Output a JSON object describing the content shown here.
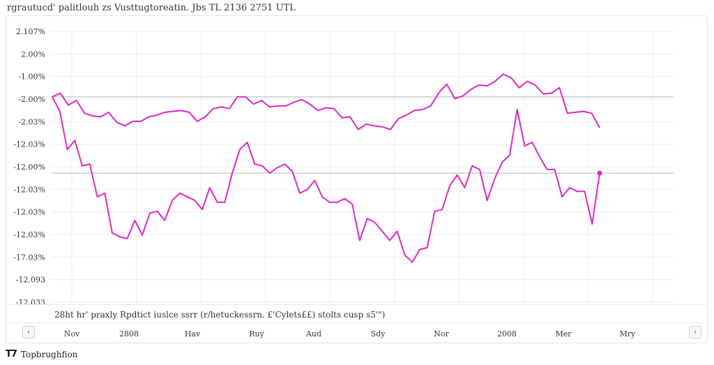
{
  "header": {
    "title": "rgrautucd' palitlouh zs Vusttugtoreatin. Jbs TL 2136 2751 UTL"
  },
  "caption": {
    "text": "28ht hr' praxly Rpdtict iuslce ssrr (r/hetuckessrn. £'Cylets££) stolts cusp s5'\")"
  },
  "nav": {
    "prev_icon": "‹",
    "next_icon": "›"
  },
  "footer": {
    "logo": "T7",
    "text": "Topbrughfion"
  },
  "colors": {
    "line": "#e225c8",
    "grid": "#ececec",
    "refline": "#c9cfcd"
  },
  "chart_data": {
    "type": "line",
    "title": "rgrautucd' palitlouh zs Vusttugtoreatin. Jbs TL 2136 2751 UTL",
    "ytick_labels": [
      "2.107%",
      "2.00%",
      "-1.00%",
      "-2.00%",
      "-2.03%",
      "-12.03%",
      "-12.00%",
      "-12.03%",
      "-12.03%",
      "-12.03%",
      "-17.03%",
      "-12.093",
      "-12.033"
    ],
    "xtick_labels": [
      "Nov",
      "2808",
      "Hav",
      "Ruy",
      "Aud",
      "Sdy",
      "Nor",
      "2008",
      "Mer",
      "Mry"
    ],
    "ylim": [
      -12.3,
      2.6
    ],
    "grid": true,
    "reference_lines": [
      -1.0,
      -5.2
    ],
    "series": [
      {
        "values": [
          -1.0,
          -0.8,
          -1.45,
          -1.2,
          -1.9,
          -2.05,
          -2.1,
          -1.85,
          -2.4,
          -2.6,
          -2.35,
          -2.35,
          -2.1,
          -2.0,
          -1.85,
          -1.8,
          -1.75,
          -1.85,
          -2.35,
          -2.1,
          -1.65,
          -1.55,
          -1.65,
          -1.0,
          -1.0,
          -1.4,
          -1.2,
          -1.55,
          -1.5,
          -1.5,
          -1.3,
          -1.15,
          -1.4,
          -1.75,
          -1.6,
          -1.65,
          -2.15,
          -2.1,
          -2.8,
          -2.5,
          -2.6,
          -2.65,
          -2.8,
          -2.2,
          -2.0,
          -1.75,
          -1.7,
          -1.5,
          -0.8,
          -0.3,
          -1.1,
          -0.95,
          -0.6,
          -0.35,
          -0.4,
          -0.15,
          0.25,
          0.05,
          -0.5,
          -0.15,
          -0.35,
          -0.85,
          -0.8,
          -0.5,
          -1.9,
          -1.85,
          -1.8,
          -1.9,
          -2.7
        ]
      },
      {
        "values": [
          -1.0,
          -1.8,
          -3.9,
          -3.4,
          -4.8,
          -4.7,
          -6.5,
          -6.3,
          -8.5,
          -8.7,
          -8.8,
          -7.8,
          -8.6,
          -7.4,
          -7.3,
          -7.8,
          -6.7,
          -6.3,
          -6.5,
          -6.7,
          -7.2,
          -6.0,
          -6.8,
          -6.8,
          -5.2,
          -3.9,
          -3.5,
          -4.7,
          -4.8,
          -5.2,
          -4.9,
          -4.7,
          -5.1,
          -6.3,
          -6.1,
          -5.6,
          -6.5,
          -6.8,
          -6.8,
          -6.6,
          -6.9,
          -8.9,
          -7.7,
          -7.9,
          -8.4,
          -8.9,
          -8.4,
          -9.7,
          -10.1,
          -9.4,
          -9.3,
          -7.3,
          -7.2,
          -5.9,
          -5.3,
          -6.0,
          -4.8,
          -5.0,
          -6.7,
          -5.5,
          -4.6,
          -4.2,
          -1.7,
          -3.7,
          -3.5,
          -4.3,
          -5.0,
          -5.0,
          -6.5,
          -6.0,
          -6.2,
          -6.2,
          -8.0,
          -5.2
        ]
      }
    ]
  }
}
